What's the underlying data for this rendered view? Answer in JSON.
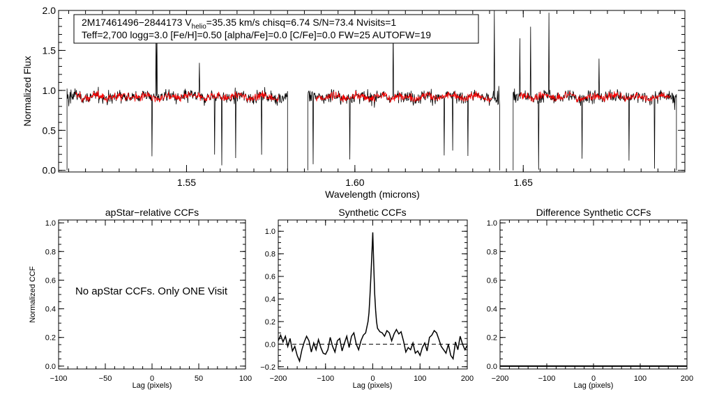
{
  "chart_data": [
    {
      "type": "line",
      "ylabel": "Normalized Flux",
      "xlabel": "Wavelength (microns)",
      "xlim": [
        1.512,
        1.698
      ],
      "ylim": [
        -0.02,
        2.0
      ],
      "xticks": [
        1.55,
        1.6,
        1.65
      ],
      "xtick_labels": [
        "1.55",
        "1.60",
        "1.65"
      ],
      "yticks": [
        0.0,
        0.5,
        1.0,
        1.5,
        2.0
      ],
      "ytick_labels": [
        "0.0",
        "0.5",
        "1.0",
        "1.5",
        "2.0"
      ],
      "series": [
        {
          "name": "observed",
          "color": "#000000"
        },
        {
          "name": "model",
          "color": "#ff0000"
        }
      ],
      "chips": [
        [
          1.5145,
          1.58
        ],
        [
          1.586,
          1.643
        ],
        [
          1.647,
          1.6955
        ]
      ],
      "info_line1_parts": [
        "2M17461496−2844173  V",
        "helio",
        "=35.35 km/s  chisq=6.74  S/N=73.4  Nvisits=1"
      ],
      "info_line2": "Teff=2,700 logg=3.0 [Fe/H]=0.50 [alpha/Fe]=0.0 [C/Fe]=0.0 FW=25 AUTOFW=19"
    },
    {
      "type": "line",
      "title": "apStar−relative CCFs",
      "xlabel": "Lag (pixels)",
      "ylabel": "Normalized CCF",
      "xlim": [
        -100,
        100
      ],
      "ylim": [
        -0.02,
        1.02
      ],
      "xticks": [
        -100,
        -50,
        0,
        50,
        100
      ],
      "xtick_labels": [
        "−100",
        "−50",
        "0",
        "50",
        "100"
      ],
      "yticks": [
        0.0,
        0.2,
        0.4,
        0.6,
        0.8,
        1.0
      ],
      "ytick_labels": [
        "0.0",
        "0.2",
        "0.4",
        "0.6",
        "0.8",
        "1.0"
      ],
      "message": "No apStar CCFs.  Only ONE Visit"
    },
    {
      "type": "line",
      "title": "Synthetic CCFs",
      "xlabel": "Lag (pixels)",
      "xlim": [
        -200,
        200
      ],
      "ylim": [
        -0.22,
        1.1
      ],
      "xticks": [
        -200,
        -100,
        0,
        100,
        200
      ],
      "xtick_labels": [
        "−200",
        "−100",
        "0",
        "100",
        "200"
      ],
      "yticks": [
        -0.2,
        0.0,
        0.2,
        0.4,
        0.6,
        0.8,
        1.0
      ],
      "ytick_labels": [
        "−0.2",
        "0.0",
        "0.2",
        "0.4",
        "0.6",
        "0.8",
        "1.0"
      ],
      "zero_line": 0.0,
      "series": [
        {
          "name": "ccf",
          "x": [
            -200,
            -195,
            -190,
            -185,
            -180,
            -175,
            -170,
            -165,
            -160,
            -155,
            -150,
            -145,
            -140,
            -135,
            -130,
            -125,
            -120,
            -115,
            -110,
            -105,
            -100,
            -95,
            -90,
            -85,
            -80,
            -75,
            -70,
            -65,
            -60,
            -55,
            -50,
            -45,
            -40,
            -35,
            -30,
            -25,
            -20,
            -15,
            -10,
            -8,
            -6,
            -4,
            -2,
            0,
            2,
            4,
            6,
            8,
            10,
            15,
            20,
            25,
            30,
            35,
            40,
            45,
            50,
            55,
            60,
            65,
            70,
            75,
            80,
            85,
            90,
            95,
            100,
            105,
            110,
            115,
            120,
            125,
            130,
            135,
            140,
            145,
            150,
            155,
            160,
            165,
            170,
            175,
            180,
            185,
            190,
            195,
            200
          ],
          "y": [
            0.03,
            0.08,
            0.02,
            0.07,
            -0.02,
            0.05,
            -0.06,
            -0.02,
            -0.1,
            -0.15,
            -0.05,
            0.02,
            0.07,
            0.03,
            -0.07,
            0.01,
            -0.05,
            0.04,
            -0.03,
            -0.08,
            -0.09,
            -0.05,
            0.06,
            -0.02,
            -0.07,
            0.03,
            0.05,
            -0.06,
            0.01,
            0.07,
            -0.03,
            0.07,
            0.1,
            0.0,
            -0.05,
            0.03,
            0.08,
            0.1,
            0.2,
            0.28,
            0.42,
            0.6,
            0.78,
            0.99,
            0.7,
            0.45,
            0.3,
            0.2,
            0.14,
            0.11,
            0.1,
            0.07,
            0.12,
            0.1,
            0.03,
            0.09,
            0.13,
            0.09,
            0.11,
            0.03,
            -0.07,
            -0.03,
            -0.05,
            0.01,
            -0.08,
            -0.06,
            -0.1,
            -0.03,
            0.01,
            -0.06,
            0.06,
            0.08,
            0.12,
            0.1,
            0.04,
            -0.02,
            -0.05,
            -0.08,
            0.0,
            -0.1,
            -0.13,
            0.02,
            -0.05,
            0.07,
            0.0,
            -0.05,
            -0.01
          ]
        }
      ]
    },
    {
      "type": "line",
      "title": "Difference Synthetic CCFs",
      "xlabel": "Lag (pixels)",
      "xlim": [
        -200,
        200
      ],
      "ylim": [
        -0.02,
        1.02
      ],
      "xticks": [
        -200,
        -100,
        0,
        100,
        200
      ],
      "xtick_labels": [
        "−200",
        "−100",
        "0",
        "100",
        "200"
      ],
      "yticks": [
        0.0,
        0.2,
        0.4,
        0.6,
        0.8,
        1.0
      ],
      "ytick_labels": [
        "0.0",
        "0.2",
        "0.4",
        "0.6",
        "0.8",
        "1.0"
      ]
    }
  ]
}
